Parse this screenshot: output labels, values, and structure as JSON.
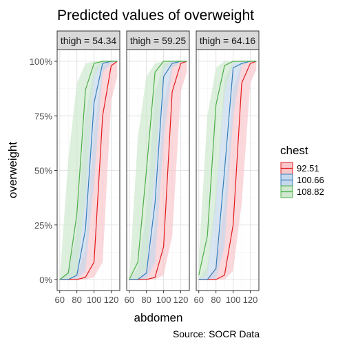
{
  "chart_data": {
    "type": "line",
    "title": "Predicted values of overweight",
    "xlabel": "abdomen",
    "ylabel": "overweight",
    "caption": "Source: SOCR Data",
    "xlim": [
      57,
      130
    ],
    "ylim": [
      0,
      1
    ],
    "x_ticks": [
      60,
      80,
      100,
      120
    ],
    "x_tick_labels": [
      "60",
      "80",
      "100",
      "120"
    ],
    "y_ticks": [
      0,
      0.25,
      0.5,
      0.75,
      1.0
    ],
    "y_tick_labels": [
      "0%",
      "25%",
      "50%",
      "75%",
      "100%"
    ],
    "grid": true,
    "legend": {
      "title": "chest",
      "position": "right"
    },
    "x": [
      60,
      70,
      80,
      90,
      100,
      110,
      120,
      127
    ],
    "series": [
      {
        "name": "92.51",
        "color": "#e41a1c",
        "fill": "#f8c8cc"
      },
      {
        "name": "100.66",
        "color": "#377eb8",
        "fill": "#c6d8ec"
      },
      {
        "name": "108.82",
        "color": "#4daf4a",
        "fill": "#cfe8cf"
      }
    ],
    "facets": [
      {
        "label": "thigh = 54.34",
        "lines": [
          [
            0.0,
            0.0,
            0.0,
            0.01,
            0.08,
            0.75,
            0.98,
            1.0
          ],
          [
            0.0,
            0.0,
            0.02,
            0.23,
            0.81,
            0.99,
            1.0,
            1.0
          ],
          [
            0.0,
            0.03,
            0.3,
            0.87,
            0.99,
            1.0,
            1.0,
            1.0
          ]
        ],
        "lower": [
          [
            0.0,
            0.0,
            0.0,
            0.0,
            0.01,
            0.08,
            0.82,
            0.93
          ],
          [
            0.0,
            0.0,
            0.0,
            0.04,
            0.45,
            0.95,
            0.99,
            1.0
          ],
          [
            0.0,
            0.0,
            0.02,
            0.38,
            0.93,
            0.99,
            1.0,
            1.0
          ]
        ],
        "upper": [
          [
            0.0,
            0.0,
            0.02,
            0.14,
            0.67,
            0.98,
            1.0,
            1.0
          ],
          [
            0.0,
            0.04,
            0.22,
            0.75,
            0.97,
            1.0,
            1.0,
            1.0
          ],
          [
            0.0,
            0.55,
            0.9,
            0.99,
            1.0,
            1.0,
            1.0,
            1.0
          ]
        ]
      },
      {
        "label": "thigh = 59.25",
        "lines": [
          [
            0.0,
            0.0,
            0.0,
            0.01,
            0.15,
            0.86,
            0.99,
            1.0
          ],
          [
            0.0,
            0.0,
            0.03,
            0.35,
            0.93,
            0.99,
            1.0,
            1.0
          ],
          [
            0.0,
            0.08,
            0.5,
            0.95,
            1.0,
            1.0,
            1.0,
            1.0
          ]
        ],
        "lower": [
          [
            0.0,
            0.0,
            0.0,
            0.0,
            0.02,
            0.2,
            0.86,
            0.95
          ],
          [
            0.0,
            0.0,
            0.0,
            0.08,
            0.63,
            0.97,
            1.0,
            1.0
          ],
          [
            0.0,
            0.0,
            0.05,
            0.52,
            0.96,
            1.0,
            1.0,
            1.0
          ]
        ],
        "upper": [
          [
            0.0,
            0.0,
            0.04,
            0.25,
            0.8,
            0.99,
            1.0,
            1.0
          ],
          [
            0.0,
            0.05,
            0.3,
            0.85,
            0.99,
            1.0,
            1.0,
            1.0
          ],
          [
            0.0,
            0.65,
            0.93,
            0.99,
            1.0,
            1.0,
            1.0,
            1.0
          ]
        ]
      },
      {
        "label": "thigh = 64.16",
        "lines": [
          [
            0.0,
            0.0,
            0.0,
            0.02,
            0.25,
            0.9,
            0.99,
            1.0
          ],
          [
            0.0,
            0.0,
            0.05,
            0.5,
            0.97,
            0.99,
            1.0,
            1.0
          ],
          [
            0.02,
            0.2,
            0.8,
            0.98,
            1.0,
            1.0,
            1.0,
            1.0
          ]
        ],
        "lower": [
          [
            0.0,
            0.0,
            0.0,
            0.0,
            0.04,
            0.35,
            0.9,
            0.96
          ],
          [
            0.0,
            0.0,
            0.0,
            0.15,
            0.75,
            0.98,
            1.0,
            1.0
          ],
          [
            0.0,
            0.02,
            0.35,
            0.85,
            0.99,
            1.0,
            1.0,
            1.0
          ]
        ],
        "upper": [
          [
            0.0,
            0.0,
            0.06,
            0.35,
            0.87,
            0.99,
            1.0,
            1.0
          ],
          [
            0.0,
            0.06,
            0.4,
            0.92,
            1.0,
            1.0,
            1.0,
            1.0
          ],
          [
            0.1,
            0.75,
            0.97,
            1.0,
            1.0,
            1.0,
            1.0,
            1.0
          ]
        ]
      }
    ]
  }
}
